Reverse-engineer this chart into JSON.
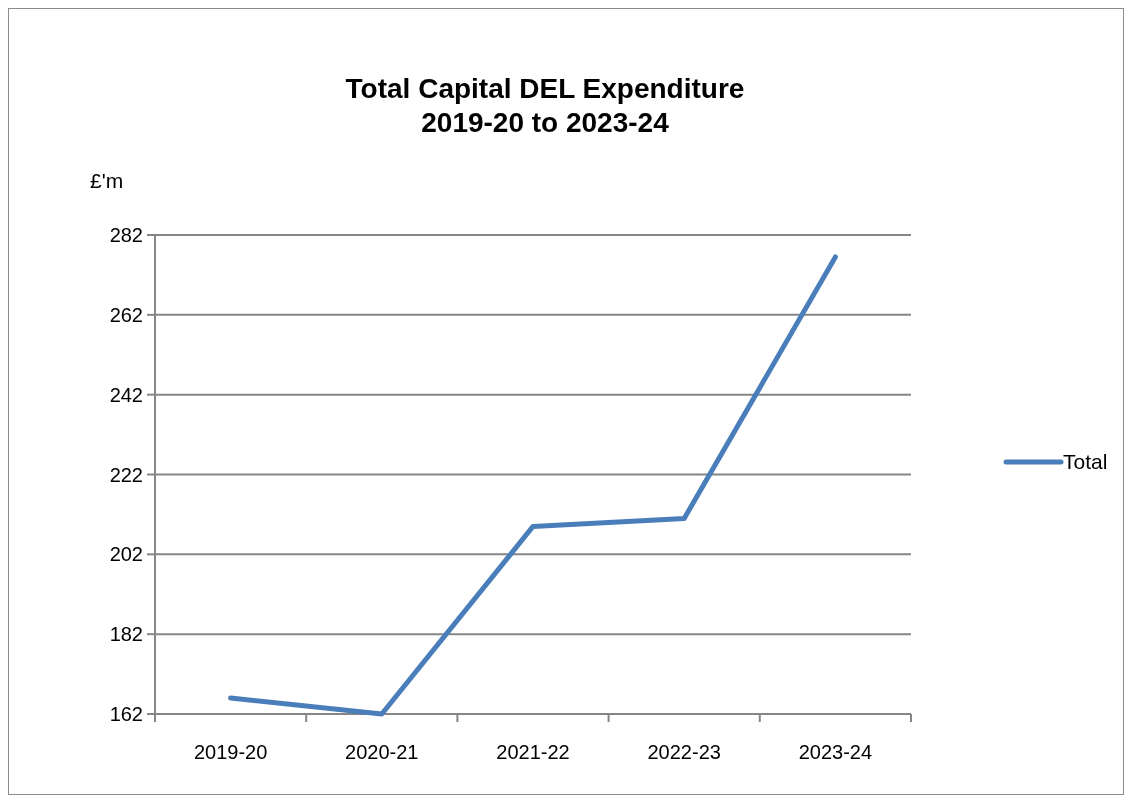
{
  "chart_data": {
    "type": "line",
    "title": "Total Capital DEL Expenditure\n2019-20 to 2023-24",
    "ylabel": "£'m",
    "categories": [
      "2019-20",
      "2020-21",
      "2021-22",
      "2022-23",
      "2023-24"
    ],
    "series": [
      {
        "name": "Total",
        "color": "#4a7ebb",
        "values": [
          166,
          162,
          209,
          211,
          276.5
        ]
      }
    ],
    "ylim": [
      162,
      282
    ],
    "yticks": [
      162,
      182,
      202,
      222,
      242,
      262,
      282
    ],
    "grid": "y",
    "legend": "right",
    "marker": "none",
    "line_style": "solid"
  }
}
